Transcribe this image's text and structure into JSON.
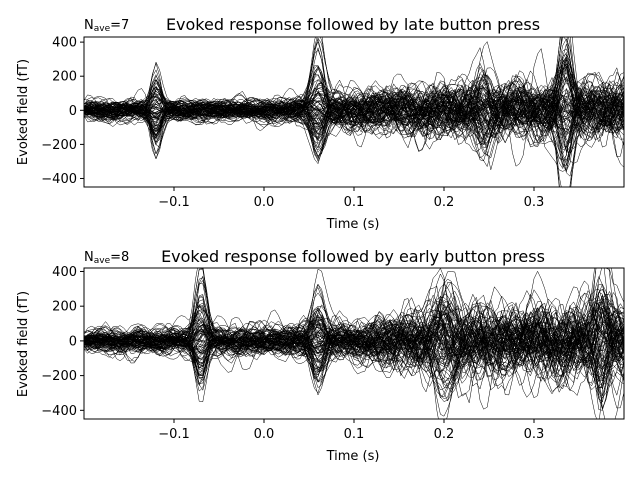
{
  "chart_data": [
    {
      "type": "line",
      "nave_label": "N",
      "nave_sub": "ave",
      "nave_value": "=7",
      "title": "Evoked response followed by late button press",
      "xlabel": "Time (s)",
      "ylabel": "Evoked field (fT)",
      "xlim": [
        -0.2,
        0.4
      ],
      "ylim": [
        -450,
        430
      ],
      "xticks": [
        -0.1,
        0.0,
        0.1,
        0.2,
        0.3
      ],
      "xtick_labels": [
        "−0.1",
        "0.0",
        "0.1",
        "0.2",
        "0.3"
      ],
      "yticks": [
        -400,
        -200,
        0,
        200,
        400
      ],
      "ytick_labels": [
        "−400",
        "−200",
        "0",
        "200",
        "400"
      ],
      "grid": false,
      "line_color": "#000000",
      "n_traces": 102,
      "seed": 7,
      "events": [
        {
          "t": -0.12,
          "amp": 160,
          "width": 0.008
        },
        {
          "t": 0.06,
          "amp": 230,
          "width": 0.01
        },
        {
          "t": 0.245,
          "amp": -170,
          "width": 0.012
        },
        {
          "t": 0.335,
          "amp": 300,
          "width": 0.01
        }
      ],
      "noise_envelope": [
        [
          -0.2,
          60
        ],
        [
          0.0,
          60
        ],
        [
          0.1,
          110
        ],
        [
          0.2,
          150
        ],
        [
          0.4,
          170
        ]
      ]
    },
    {
      "type": "line",
      "nave_label": "N",
      "nave_sub": "ave",
      "nave_value": "=8",
      "title": "Evoked response followed by early button press",
      "xlabel": "Time (s)",
      "ylabel": "Evoked field (fT)",
      "xlim": [
        -0.2,
        0.4
      ],
      "ylim": [
        -450,
        420
      ],
      "xticks": [
        -0.1,
        0.0,
        0.1,
        0.2,
        0.3
      ],
      "xtick_labels": [
        "−0.1",
        "0.0",
        "0.1",
        "0.2",
        "0.3"
      ],
      "yticks": [
        -400,
        -200,
        0,
        200,
        400
      ],
      "ytick_labels": [
        "−400",
        "−200",
        "0",
        "200",
        "400"
      ],
      "grid": false,
      "line_color": "#000000",
      "n_traces": 102,
      "seed": 8,
      "events": [
        {
          "t": -0.07,
          "amp": 220,
          "width": 0.009
        },
        {
          "t": 0.06,
          "amp": 190,
          "width": 0.01
        },
        {
          "t": 0.2,
          "amp": -190,
          "width": 0.015
        },
        {
          "t": 0.375,
          "amp": 300,
          "width": 0.01
        }
      ],
      "noise_envelope": [
        [
          -0.2,
          50
        ],
        [
          0.0,
          70
        ],
        [
          0.1,
          90
        ],
        [
          0.2,
          170
        ],
        [
          0.4,
          180
        ]
      ]
    }
  ]
}
